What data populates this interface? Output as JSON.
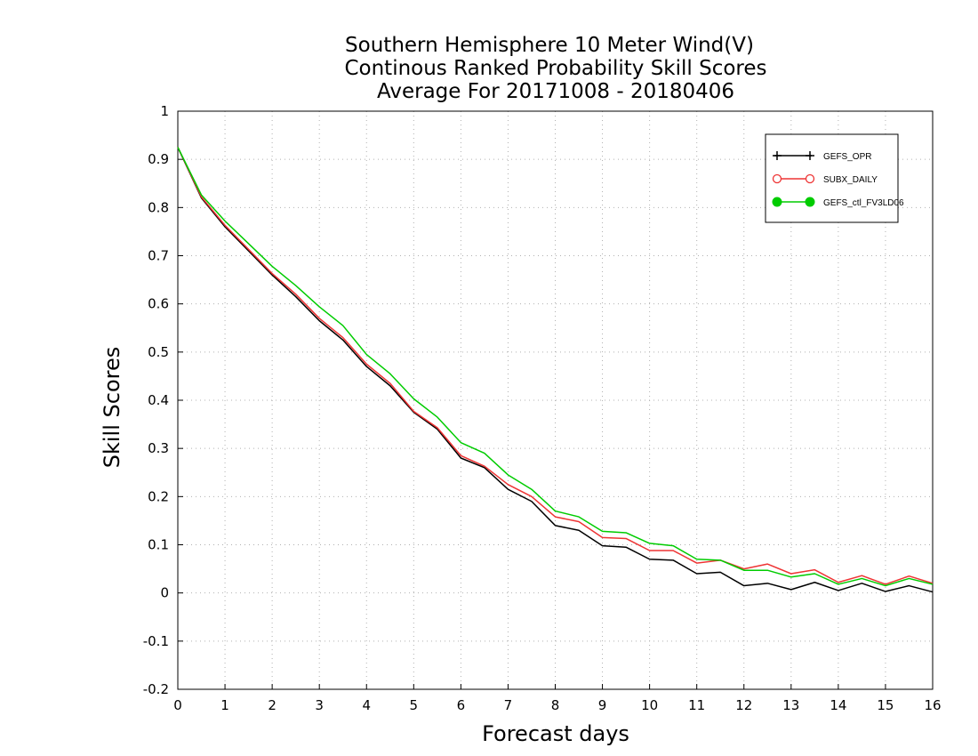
{
  "chart_data": {
    "type": "line",
    "title": [
      "Southern Hemisphere 10 Meter Wind(V)",
      "Continous Ranked Probability Skill Scores",
      "Average For 20171008 - 20180406"
    ],
    "xlabel": "Forecast days",
    "ylabel": "Skill Scores",
    "xlim": [
      0,
      16
    ],
    "ylim": [
      -0.2,
      1
    ],
    "xticks": [
      0,
      1,
      2,
      3,
      4,
      5,
      6,
      7,
      8,
      9,
      10,
      11,
      12,
      13,
      14,
      15,
      16
    ],
    "yticks": [
      -0.2,
      -0.1,
      0,
      0.1,
      0.2,
      0.3,
      0.4,
      0.5,
      0.6,
      0.7,
      0.8,
      0.9,
      1
    ],
    "grid": true,
    "legend_position": "top-right",
    "x": [
      0,
      0.5,
      1,
      1.5,
      2,
      2.5,
      3,
      3.5,
      4,
      4.5,
      5,
      5.5,
      6,
      6.5,
      7,
      7.5,
      8,
      8.5,
      9,
      9.5,
      10,
      10.5,
      11,
      11.5,
      12,
      12.5,
      13,
      13.5,
      14,
      14.5,
      15,
      15.5,
      16
    ],
    "series": [
      {
        "name": "GEFS_OPR",
        "color": "#000000",
        "marker": "plus",
        "values": [
          0.925,
          0.82,
          0.76,
          0.71,
          0.66,
          0.615,
          0.565,
          0.525,
          0.47,
          0.43,
          0.375,
          0.34,
          0.28,
          0.26,
          0.215,
          0.19,
          0.14,
          0.13,
          0.098,
          0.095,
          0.07,
          0.068,
          0.04,
          0.043,
          0.015,
          0.02,
          0.007,
          0.022,
          0.005,
          0.02,
          0.003,
          0.015,
          0.002
        ]
      },
      {
        "name": "SUBX_DAILY",
        "color": "#ee3333",
        "marker": "open-circle",
        "values": [
          0.925,
          0.822,
          0.763,
          0.713,
          0.663,
          0.62,
          0.57,
          0.53,
          0.475,
          0.435,
          0.377,
          0.343,
          0.285,
          0.263,
          0.225,
          0.2,
          0.158,
          0.148,
          0.115,
          0.113,
          0.088,
          0.088,
          0.062,
          0.068,
          0.05,
          0.06,
          0.04,
          0.048,
          0.022,
          0.036,
          0.018,
          0.035,
          0.02
        ]
      },
      {
        "name": "GEFS_ctl_FV3LD06",
        "color": "#00cc00",
        "marker": "filled-circle",
        "values": [
          0.925,
          0.826,
          0.772,
          0.725,
          0.678,
          0.638,
          0.594,
          0.555,
          0.495,
          0.455,
          0.403,
          0.365,
          0.312,
          0.29,
          0.245,
          0.215,
          0.17,
          0.158,
          0.128,
          0.125,
          0.103,
          0.098,
          0.07,
          0.068,
          0.047,
          0.047,
          0.033,
          0.04,
          0.018,
          0.03,
          0.015,
          0.03,
          0.018
        ]
      }
    ]
  }
}
